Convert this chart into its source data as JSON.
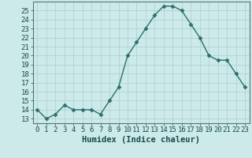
{
  "title": "",
  "xlabel": "Humidex (Indice chaleur)",
  "x": [
    0,
    1,
    2,
    3,
    4,
    5,
    6,
    7,
    8,
    9,
    10,
    11,
    12,
    13,
    14,
    15,
    16,
    17,
    18,
    19,
    20,
    21,
    22,
    23
  ],
  "y": [
    14,
    13,
    13.5,
    14.5,
    14,
    14,
    14,
    13.5,
    15,
    16.5,
    20,
    21.5,
    23,
    24.5,
    25.5,
    25.5,
    25,
    23.5,
    22,
    20,
    19.5,
    19.5,
    18,
    16.5
  ],
  "line_color": "#2e6e6e",
  "marker": "D",
  "marker_size": 2.5,
  "bg_color": "#cceaea",
  "grid_color": "#b0cccc",
  "ylim": [
    12.5,
    26.0
  ],
  "xlim": [
    -0.5,
    23.5
  ],
  "yticks": [
    13,
    14,
    15,
    16,
    17,
    18,
    19,
    20,
    21,
    22,
    23,
    24,
    25
  ],
  "xticks": [
    0,
    1,
    2,
    3,
    4,
    5,
    6,
    7,
    8,
    9,
    10,
    11,
    12,
    13,
    14,
    15,
    16,
    17,
    18,
    19,
    20,
    21,
    22,
    23
  ],
  "tick_fontsize": 6.5,
  "xlabel_fontsize": 7.5
}
